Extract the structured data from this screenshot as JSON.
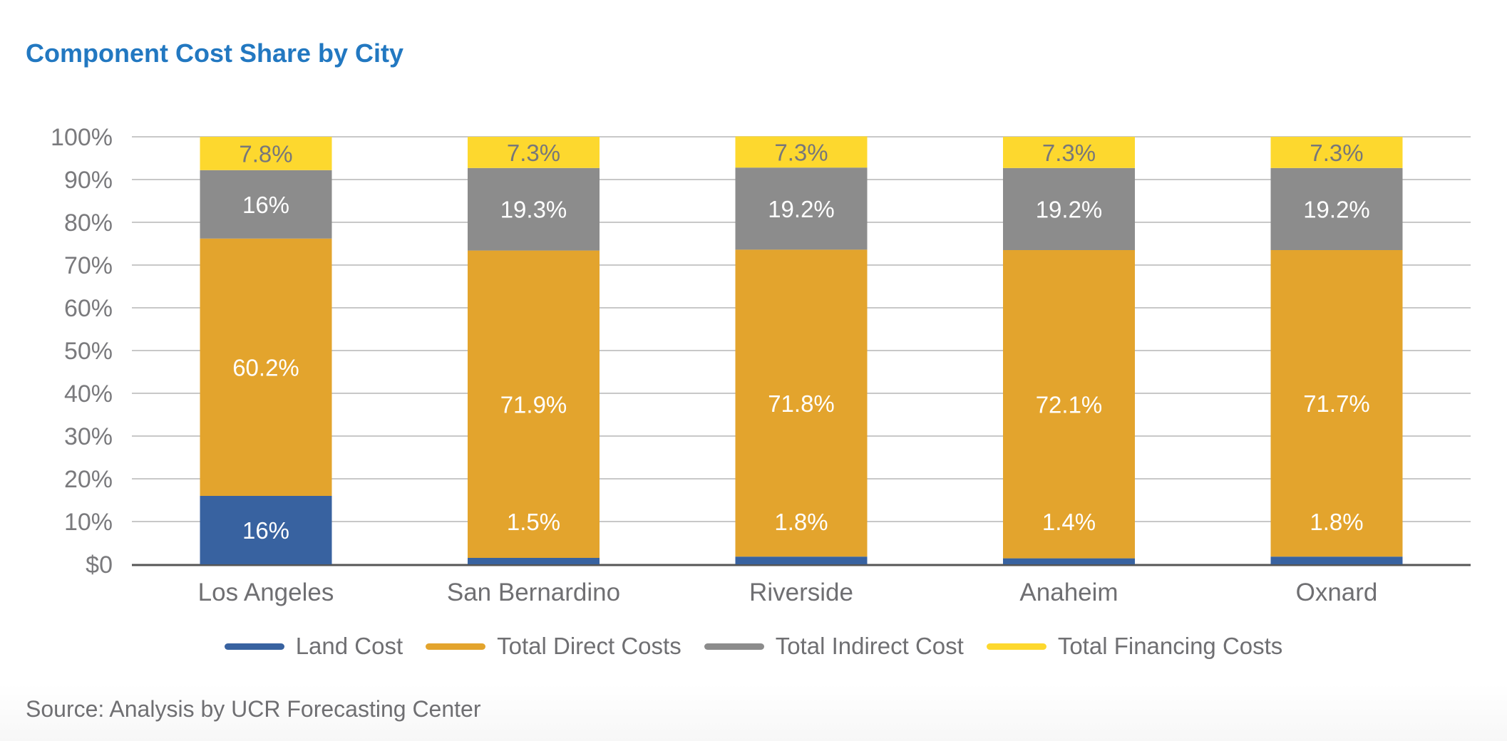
{
  "chart_data": {
    "type": "bar",
    "stacked": true,
    "title": "Component Cost Share by City",
    "xlabel": "",
    "ylabel": "",
    "ylim": [
      0,
      100
    ],
    "yticks": [
      "$0",
      "10%",
      "20%",
      "30%",
      "40%",
      "50%",
      "60%",
      "70%",
      "80%",
      "90%",
      "100%"
    ],
    "grid": true,
    "legend_position": "bottom",
    "categories": [
      "Los Angeles",
      "San Bernardino",
      "Riverside",
      "Anaheim",
      "Oxnard"
    ],
    "series": [
      {
        "name": "Land Cost",
        "color": "#3862a0",
        "label_color": "#ffffff",
        "values": [
          16,
          1.5,
          1.8,
          1.4,
          1.8
        ],
        "labels": [
          "16%",
          "1.5%",
          "1.8%",
          "1.4%",
          "1.8%"
        ]
      },
      {
        "name": "Total Direct Costs",
        "color": "#e3a42d",
        "label_color": "#ffffff",
        "values": [
          60.2,
          71.9,
          71.8,
          72.1,
          71.7
        ],
        "labels": [
          "60.2%",
          "71.9%",
          "71.8%",
          "72.1%",
          "71.7%"
        ]
      },
      {
        "name": "Total Indirect Cost",
        "color": "#8c8c8c",
        "label_color": "#ffffff",
        "values": [
          16,
          19.3,
          19.2,
          19.2,
          19.2
        ],
        "labels": [
          "16%",
          "19.3%",
          "19.2%",
          "19.2%",
          "19.2%"
        ]
      },
      {
        "name": "Total Financing Costs",
        "color": "#fdd82e",
        "label_color": "#77777a",
        "values": [
          7.8,
          7.3,
          7.3,
          7.3,
          7.3
        ],
        "labels": [
          "7.8%",
          "7.3%",
          "7.3%",
          "7.3%",
          "7.3%"
        ]
      }
    ],
    "source": "Source: Analysis by UCR Forecasting Center"
  }
}
